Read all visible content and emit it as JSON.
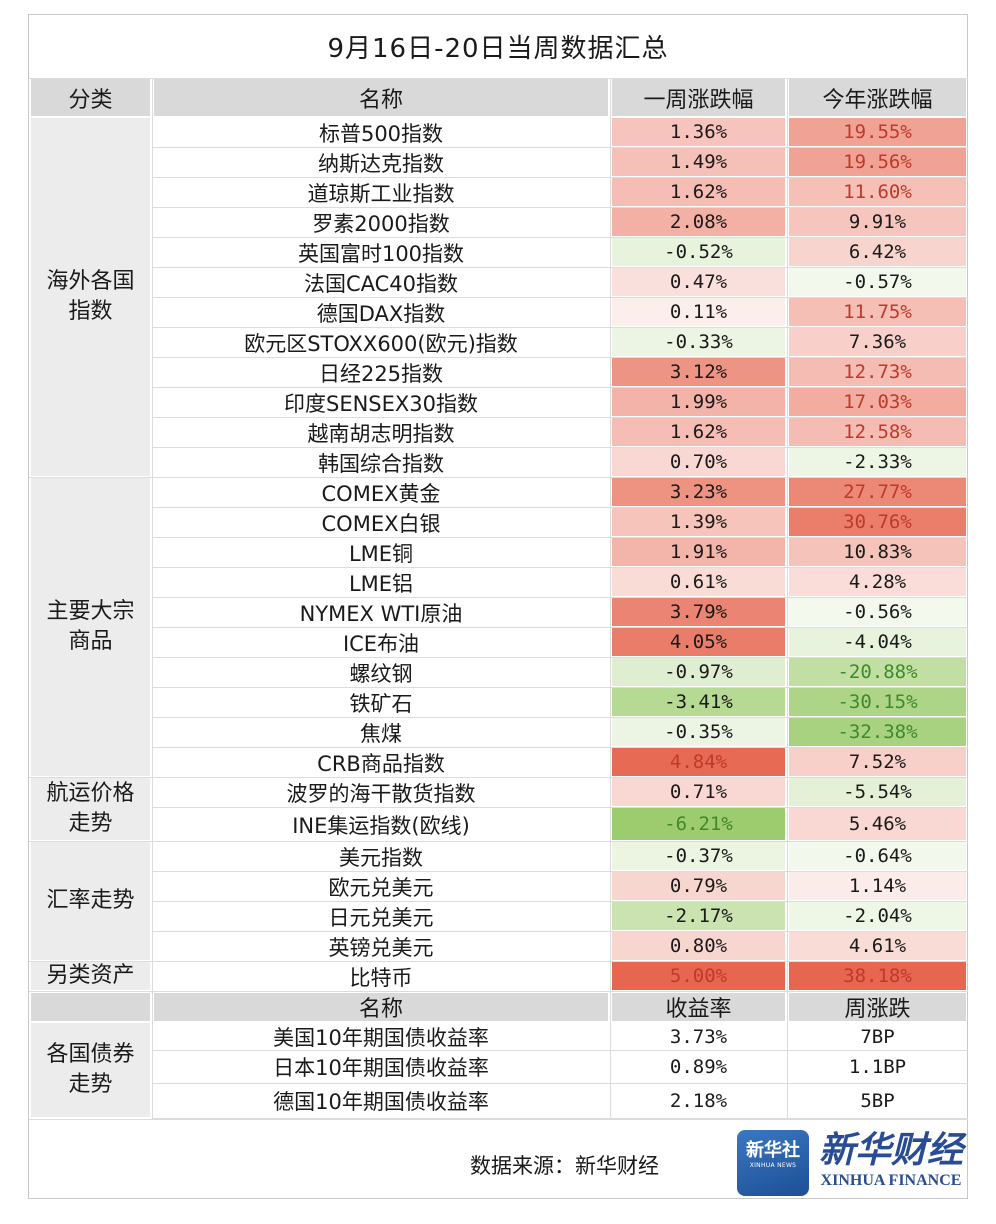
{
  "title": "9月16日-20日当周数据汇总",
  "headers": {
    "category": "分类",
    "name": "名称",
    "week": "一周涨跌幅",
    "ytd": "今年涨跌幅"
  },
  "categories": [
    {
      "label": "海外各国\n指数",
      "rows": 12
    },
    {
      "label": "主要大宗\n商品",
      "rows": 10
    },
    {
      "label": "航运价格\n走势",
      "rows": 2
    },
    {
      "label": "汇率走势",
      "rows": 4
    },
    {
      "label": "另类资产",
      "rows": 1
    }
  ],
  "rows": [
    {
      "name": "标普500指数",
      "week": "1.36%",
      "ytd": "19.55%"
    },
    {
      "name": "纳斯达克指数",
      "week": "1.49%",
      "ytd": "19.56%"
    },
    {
      "name": "道琼斯工业指数",
      "week": "1.62%",
      "ytd": "11.60%"
    },
    {
      "name": "罗素2000指数",
      "week": "2.08%",
      "ytd": "9.91%"
    },
    {
      "name": "英国富时100指数",
      "week": "-0.52%",
      "ytd": "6.42%"
    },
    {
      "name": "法国CAC40指数",
      "week": "0.47%",
      "ytd": "-0.57%"
    },
    {
      "name": "德国DAX指数",
      "week": "0.11%",
      "ytd": "11.75%"
    },
    {
      "name": "欧元区STOXX600(欧元)指数",
      "week": "-0.33%",
      "ytd": "7.36%"
    },
    {
      "name": "日经225指数",
      "week": "3.12%",
      "ytd": "12.73%"
    },
    {
      "name": "印度SENSEX30指数",
      "week": "1.99%",
      "ytd": "17.03%"
    },
    {
      "name": "越南胡志明指数",
      "week": "1.62%",
      "ytd": "12.58%"
    },
    {
      "name": "韩国综合指数",
      "week": "0.70%",
      "ytd": "-2.33%"
    },
    {
      "name": "COMEX黄金",
      "week": "3.23%",
      "ytd": "27.77%"
    },
    {
      "name": "COMEX白银",
      "week": "1.39%",
      "ytd": "30.76%"
    },
    {
      "name": "LME铜",
      "week": "1.91%",
      "ytd": "10.83%"
    },
    {
      "name": "LME铝",
      "week": "0.61%",
      "ytd": "4.28%"
    },
    {
      "name": "NYMEX WTI原油",
      "week": "3.79%",
      "ytd": "-0.56%"
    },
    {
      "name": "ICE布油",
      "week": "4.05%",
      "ytd": "-4.04%"
    },
    {
      "name": "螺纹钢",
      "week": "-0.97%",
      "ytd": "-20.88%"
    },
    {
      "name": "铁矿石",
      "week": "-3.41%",
      "ytd": "-30.15%"
    },
    {
      "name": "焦煤",
      "week": "-0.35%",
      "ytd": "-32.38%"
    },
    {
      "name": "CRB商品指数",
      "week": "4.84%",
      "ytd": "7.52%"
    },
    {
      "name": "波罗的海干散货指数",
      "week": "0.71%",
      "ytd": "-5.54%"
    },
    {
      "name": "INE集运指数(欧线)",
      "week": "-6.21%",
      "ytd": "5.46%"
    },
    {
      "name": "美元指数",
      "week": "-0.37%",
      "ytd": "-0.64%"
    },
    {
      "name": "欧元兑美元",
      "week": "0.79%",
      "ytd": "1.14%"
    },
    {
      "name": "日元兑美元",
      "week": "-2.17%",
      "ytd": "-2.04%"
    },
    {
      "name": "英镑兑美元",
      "week": "0.80%",
      "ytd": "4.61%"
    },
    {
      "name": "比特币",
      "week": "5.00%",
      "ytd": "38.18%"
    }
  ],
  "bond_headers": {
    "name": "名称",
    "yield": "收益率",
    "change": "周涨跌"
  },
  "bond_category": "各国债券\n走势",
  "bonds": [
    {
      "name": "美国10年期国债收益率",
      "yield": "3.73%",
      "change": "7BP"
    },
    {
      "name": "日本10年期国债收益率",
      "yield": "0.89%",
      "change": "1.1BP"
    },
    {
      "name": "德国10年期国债收益率",
      "yield": "2.18%",
      "change": "5BP"
    }
  ],
  "footer": {
    "source": "数据来源：新华财经",
    "logo_badge": "新华社",
    "logo_badge_sub": "XINHUA NEWS",
    "logo_name": "新华财经",
    "logo_name_en": "XINHUA FINANCE"
  }
}
